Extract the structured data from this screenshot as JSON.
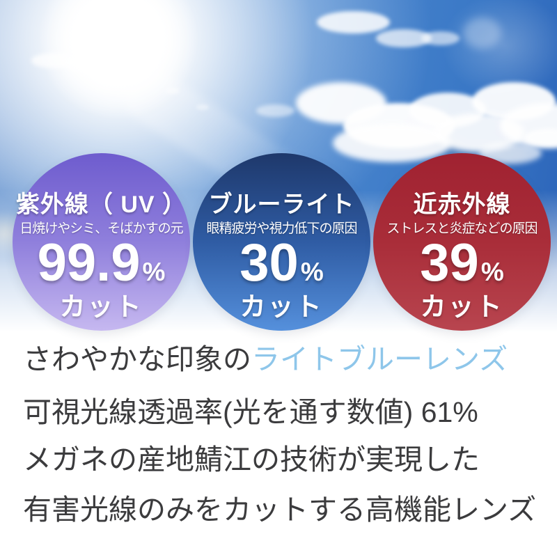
{
  "protection_stats": {
    "items": [
      {
        "id": "uv",
        "title": "紫外線（ UV ）",
        "subtitle": "日焼けやシミ、そばかすの元",
        "value": "99.9",
        "unit": "%",
        "suffix": "カット",
        "gradient_top": "#6E5CCE",
        "gradient_mid": "#8F7FDC",
        "gradient_bottom": "#C6B8F0"
      },
      {
        "id": "blue-light",
        "title": "ブルーライト",
        "subtitle": "眼精疲労や視力低下の原因",
        "value": "30",
        "unit": "%",
        "suffix": "カット",
        "gradient_top": "#1E386B",
        "gradient_mid": "#2F5CA4",
        "gradient_bottom": "#5590DC"
      },
      {
        "id": "near-infrared",
        "title": "近赤外線",
        "subtitle": "ストレスと炎症などの原因",
        "value": "39",
        "unit": "%",
        "suffix": "カット",
        "gradient_top": "#A02231",
        "gradient_mid": "#A92D39",
        "gradient_bottom": "#B8454F"
      }
    ]
  },
  "caption": {
    "line1_prefix": "さわやかな印象の",
    "line1_highlight": "ライトブルーレンズ",
    "line2": "可視光線透過率(光を通す数値) 61%",
    "line3": "メガネの産地鯖江の技術が実現した",
    "line4": "有害光線のみをカットする高機能レンズ",
    "text_color": "#3B3B3D",
    "highlight_color": "#8EC6EA"
  }
}
